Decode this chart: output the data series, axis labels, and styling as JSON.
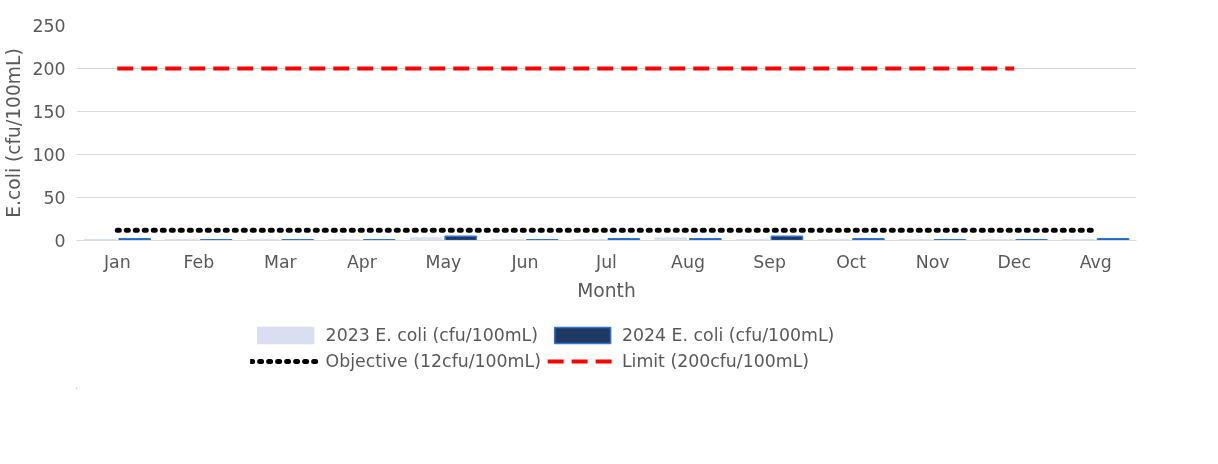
{
  "chart_data": {
    "type": "bar",
    "xlabel": "Month",
    "ylabel": "E.coli (cfu/100mL)",
    "categories": [
      "Jan",
      "Feb",
      "Mar",
      "Apr",
      "May",
      "Jun",
      "Jul",
      "Aug",
      "Sep",
      "Oct",
      "Nov",
      "Dec",
      "Avg"
    ],
    "series": [
      {
        "name": "2023 E. coli (cfu/100mL)",
        "color": "#d9dff0",
        "values": [
          1,
          1,
          1,
          1,
          3,
          1,
          1,
          3,
          1,
          1,
          1,
          1,
          1
        ]
      },
      {
        "name": "2024 E. coli (cfu/100mL)",
        "color": "#1f3864",
        "values": [
          2,
          1,
          1,
          1,
          5,
          1,
          2,
          2,
          5,
          2,
          1,
          1,
          2
        ]
      },
      {
        "name": "Objective (12cfu/100mL)",
        "type": "line",
        "color": "#000000",
        "line_style": "dotted",
        "values": [
          12,
          12,
          12,
          12,
          12,
          12,
          12,
          12,
          12,
          12,
          12,
          12,
          12
        ]
      },
      {
        "name": "Limit (200cfu/100mL)",
        "type": "line",
        "color": "#ff0000",
        "line_style": "dashed",
        "values": [
          200,
          200,
          200,
          200,
          200,
          200,
          200,
          200,
          200,
          200,
          200,
          200,
          null
        ]
      }
    ],
    "ylim": [
      0,
      250
    ],
    "yticks": [
      0,
      50,
      100,
      150,
      200,
      250
    ],
    "grid": "y",
    "legend": "bottom"
  }
}
